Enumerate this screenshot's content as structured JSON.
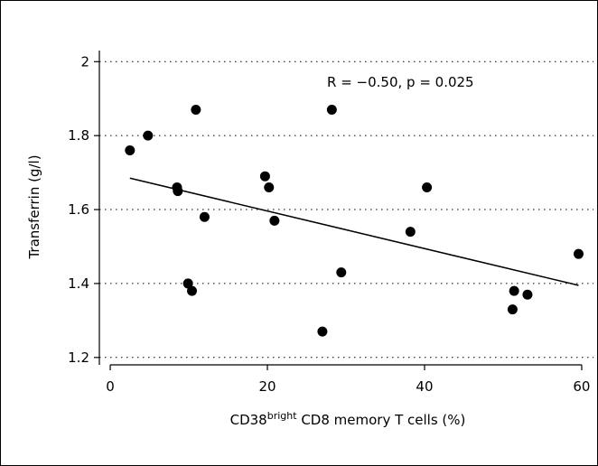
{
  "chart_data": {
    "type": "scatter",
    "xlabel_main": "CD38",
    "xlabel_sup": "bright",
    "xlabel_rest": " CD8 memory T cells (%)",
    "ylabel": "Transferrin (g/l)",
    "annotation": "R = −0.50, p = 0.025",
    "xlim": [
      -1.5,
      61.5
    ],
    "ylim": [
      1.18,
      2.03
    ],
    "x_ticks": [
      0,
      20,
      40,
      60
    ],
    "x_tick_labels": [
      "0",
      "20",
      "40",
      "60"
    ],
    "y_ticks": [
      1.2,
      1.4,
      1.6,
      1.8,
      2.0
    ],
    "y_tick_labels": [
      "1.2",
      "1.4",
      "1.6",
      "1.8",
      "2"
    ],
    "grid": "horizontal dotted",
    "points": [
      {
        "x": 2.5,
        "y": 1.76
      },
      {
        "x": 4.8,
        "y": 1.8
      },
      {
        "x": 8.5,
        "y": 1.66
      },
      {
        "x": 8.6,
        "y": 1.65
      },
      {
        "x": 9.9,
        "y": 1.4
      },
      {
        "x": 10.4,
        "y": 1.38
      },
      {
        "x": 10.9,
        "y": 1.87
      },
      {
        "x": 12.0,
        "y": 1.58
      },
      {
        "x": 19.7,
        "y": 1.69
      },
      {
        "x": 20.2,
        "y": 1.66
      },
      {
        "x": 20.9,
        "y": 1.57
      },
      {
        "x": 27.0,
        "y": 1.27
      },
      {
        "x": 28.2,
        "y": 1.87
      },
      {
        "x": 29.4,
        "y": 1.43
      },
      {
        "x": 38.2,
        "y": 1.54
      },
      {
        "x": 40.3,
        "y": 1.66
      },
      {
        "x": 51.2,
        "y": 1.33
      },
      {
        "x": 51.4,
        "y": 1.38
      },
      {
        "x": 53.1,
        "y": 1.37
      },
      {
        "x": 59.6,
        "y": 1.48
      }
    ],
    "regression_line": {
      "x": [
        2.5,
        59.6
      ],
      "y": [
        1.685,
        1.395
      ]
    },
    "colors": {
      "points": "#000000",
      "line": "#000000",
      "grid": "#000000"
    }
  }
}
